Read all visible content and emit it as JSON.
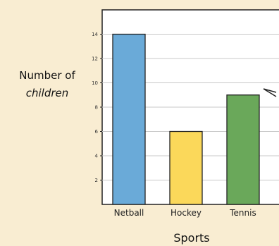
{
  "chart_data": {
    "type": "bar",
    "title": "",
    "xlabel": "Sports",
    "ylabel": "Number of children",
    "ylabel_lines": [
      "Number of",
      "children"
    ],
    "categories": [
      "Netball",
      "Hockey",
      "Tennis"
    ],
    "values": [
      14,
      6,
      9
    ],
    "colors": [
      "#6aaad8",
      "#fbd85a",
      "#6aa85a"
    ],
    "yticks": [
      2,
      4,
      6,
      8,
      10,
      12,
      14
    ],
    "ylim": [
      0,
      16
    ],
    "grid": true,
    "gridline_color": "#c8c8c8",
    "panel_background": "#ffffff",
    "bar_outline": "#222222"
  }
}
